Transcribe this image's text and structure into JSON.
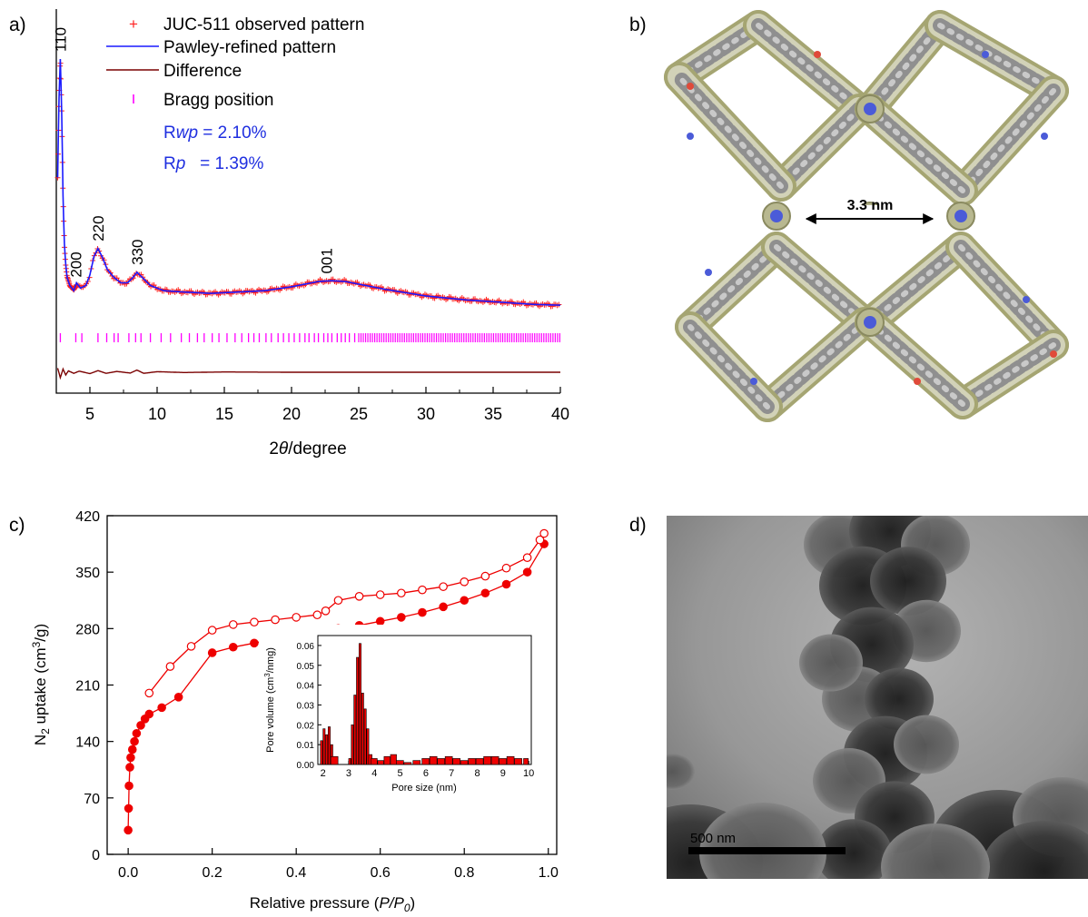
{
  "panel_labels": {
    "a": "a)",
    "b": "b)",
    "c": "c)",
    "d": "d)"
  },
  "colors": {
    "observed": "#ff2020",
    "refined": "#1a1aff",
    "difference": "#7a0000",
    "bragg": "#ff00ff",
    "rtext": "#1f2fe0",
    "isotherm": "#ee0000",
    "framework_wall": "#b3b37a",
    "tem_background": "#8a8a8a"
  },
  "chart_data": [
    {
      "type": "line",
      "panel": "a",
      "xlabel_pre": "2",
      "xlabel_theta": "θ",
      "xlabel_post": "/degree",
      "xlim": [
        2.5,
        40
      ],
      "xticks": [
        "5",
        "10",
        "15",
        "20",
        "25",
        "30",
        "35",
        "40"
      ],
      "legend": [
        {
          "symbol": "+",
          "label": "JUC-511 observed pattern"
        },
        {
          "symbol": "line-blue",
          "label": "Pawley-refined pattern"
        },
        {
          "symbol": "line-dark",
          "label": "Difference"
        },
        {
          "symbol": "|",
          "label": "Bragg position"
        }
      ],
      "rwp": {
        "prefix": "R",
        "sub": "wp",
        "value": " = 2.10%"
      },
      "rp": {
        "prefix": "R",
        "sub": "p",
        "value": "   = 1.39%"
      },
      "peak_labels": [
        {
          "x": 2.8,
          "label": "110"
        },
        {
          "x": 3.95,
          "label": "200"
        },
        {
          "x": 5.6,
          "label": "220"
        },
        {
          "x": 8.5,
          "label": "330"
        },
        {
          "x": 22.6,
          "label": "001"
        }
      ],
      "series": [
        {
          "name": "JUC-511 observed pattern",
          "x": [
            2.6,
            2.7,
            2.8,
            2.9,
            3.0,
            3.1,
            3.2,
            3.3,
            3.5,
            3.8,
            4.0,
            4.3,
            4.7,
            5.0,
            5.3,
            5.6,
            5.9,
            6.3,
            6.8,
            7.3,
            7.8,
            8.2,
            8.5,
            8.9,
            9.5,
            10.5,
            12,
            14,
            16,
            18,
            20,
            21,
            22,
            23,
            24,
            25,
            27,
            30,
            33,
            36,
            38,
            40
          ],
          "y": [
            0.55,
            0.85,
            1.0,
            0.8,
            0.48,
            0.3,
            0.22,
            0.17,
            0.14,
            0.12,
            0.15,
            0.13,
            0.14,
            0.18,
            0.25,
            0.28,
            0.25,
            0.2,
            0.17,
            0.15,
            0.15,
            0.17,
            0.19,
            0.17,
            0.14,
            0.12,
            0.115,
            0.11,
            0.115,
            0.12,
            0.135,
            0.145,
            0.155,
            0.158,
            0.155,
            0.145,
            0.125,
            0.1,
            0.085,
            0.075,
            0.068,
            0.065
          ]
        },
        {
          "name": "Pawley-refined pattern",
          "x": [
            2.6,
            2.7,
            2.8,
            2.9,
            3.0,
            3.1,
            3.2,
            3.3,
            3.5,
            3.8,
            4.0,
            4.3,
            4.7,
            5.0,
            5.3,
            5.6,
            5.9,
            6.3,
            6.8,
            7.3,
            7.8,
            8.2,
            8.5,
            8.9,
            9.5,
            10.5,
            12,
            14,
            16,
            18,
            20,
            21,
            22,
            23,
            24,
            25,
            27,
            30,
            33,
            36,
            38,
            40
          ],
          "y": [
            0.55,
            0.85,
            1.0,
            0.8,
            0.48,
            0.3,
            0.22,
            0.17,
            0.14,
            0.12,
            0.15,
            0.13,
            0.14,
            0.18,
            0.25,
            0.28,
            0.25,
            0.2,
            0.17,
            0.15,
            0.15,
            0.17,
            0.19,
            0.17,
            0.14,
            0.12,
            0.115,
            0.11,
            0.115,
            0.12,
            0.135,
            0.145,
            0.155,
            0.158,
            0.155,
            0.145,
            0.125,
            0.1,
            0.085,
            0.075,
            0.068,
            0.065
          ]
        },
        {
          "name": "Difference",
          "x": [
            2.6,
            2.8,
            3.0,
            3.2,
            3.4,
            3.8,
            4.2,
            5.0,
            5.6,
            6.2,
            7.0,
            8.0,
            8.5,
            9.0,
            10,
            12,
            15,
            20,
            25,
            30,
            35,
            40
          ],
          "y": [
            0.015,
            -0.02,
            0.012,
            -0.01,
            0.005,
            -0.004,
            0.004,
            -0.005,
            0.006,
            -0.004,
            0.003,
            -0.003,
            0.008,
            -0.004,
            0.002,
            -0.001,
            0.001,
            0.0,
            0.0,
            0.0,
            0.0,
            0.0
          ]
        }
      ],
      "bragg_x": [
        2.8,
        3.95,
        4.4,
        5.6,
        6.25,
        6.8,
        7.1,
        7.9,
        8.4,
        8.8,
        9.5,
        10.3,
        11.0,
        11.8,
        12.4,
        13.0,
        13.5,
        14.1,
        14.6,
        15.2,
        15.8,
        16.3,
        16.8,
        17.2,
        17.6,
        18.1,
        18.5,
        19.0,
        19.4,
        19.8,
        20.2,
        20.6,
        21.0,
        21.3,
        21.7,
        22.0,
        22.4,
        22.7,
        23.0,
        23.4,
        23.7,
        24.0,
        24.3,
        24.7
      ],
      "bragg_dense_range": [
        25,
        40
      ]
    },
    {
      "type": "scatter",
      "panel": "c",
      "xlabel": "Relative pressure (P/P0)",
      "xlabel_pre": "Relative pressure (",
      "xlabel_italic": "P/P",
      "xlabel_sub": "0",
      "xlabel_post": ")",
      "ylabel_pre": "N",
      "ylabel_sub": "2",
      "ylabel_mid": " uptake (cm",
      "ylabel_sup": "3",
      "ylabel_post": "/g)",
      "xlim": [
        -0.05,
        1.02
      ],
      "ylim": [
        0,
        420
      ],
      "xticks": [
        "0.0",
        "0.2",
        "0.4",
        "0.6",
        "0.8",
        "1.0"
      ],
      "yticks": [
        "0",
        "70",
        "140",
        "210",
        "280",
        "350",
        "420"
      ],
      "series": [
        {
          "name": "adsorption",
          "x": [
            0.0,
            0.001,
            0.002,
            0.004,
            0.006,
            0.01,
            0.015,
            0.02,
            0.03,
            0.04,
            0.05,
            0.08,
            0.12,
            0.2,
            0.25,
            0.3,
            0.35,
            0.4,
            0.45,
            0.5,
            0.55,
            0.6,
            0.65,
            0.7,
            0.75,
            0.8,
            0.85,
            0.9,
            0.95,
            0.99
          ],
          "y": [
            30,
            57,
            85,
            108,
            120,
            130,
            140,
            150,
            160,
            168,
            174,
            182,
            195,
            250,
            257,
            262,
            267,
            272,
            276,
            280,
            284,
            289,
            294,
            300,
            307,
            315,
            324,
            335,
            350,
            385
          ]
        },
        {
          "name": "desorption",
          "x": [
            0.99,
            0.98,
            0.95,
            0.9,
            0.85,
            0.8,
            0.75,
            0.7,
            0.65,
            0.6,
            0.55,
            0.5,
            0.47,
            0.45,
            0.4,
            0.35,
            0.3,
            0.25,
            0.2,
            0.15,
            0.1,
            0.05
          ],
          "y": [
            398,
            390,
            368,
            355,
            345,
            338,
            332,
            328,
            324,
            322,
            320,
            315,
            302,
            297,
            294,
            291,
            288,
            285,
            278,
            258,
            233,
            200
          ]
        }
      ]
    },
    {
      "type": "bar",
      "panel": "c-inset",
      "xlabel": "Pore size (nm)",
      "ylabel_pre": "Pore volume (cm",
      "ylabel_sup": "3",
      "ylabel_post": "/nmg)",
      "xlim": [
        1.8,
        10.1
      ],
      "ylim": [
        0,
        0.065
      ],
      "xticks": [
        "2",
        "3",
        "4",
        "5",
        "6",
        "7",
        "8",
        "9",
        "10"
      ],
      "yticks": [
        "0.00",
        "0.01",
        "0.02",
        "0.03",
        "0.04",
        "0.05",
        "0.06"
      ],
      "x": [
        1.95,
        2.05,
        2.15,
        2.25,
        2.35,
        2.45,
        3.05,
        3.15,
        3.25,
        3.35,
        3.45,
        3.55,
        3.65,
        3.75,
        3.85,
        4.0,
        4.25,
        4.5,
        4.75,
        5.0,
        5.3,
        5.65,
        6.0,
        6.3,
        6.6,
        6.9,
        7.2,
        7.5,
        7.8,
        8.1,
        8.4,
        8.7,
        9.0,
        9.3,
        9.6,
        9.9
      ],
      "values": [
        0.012,
        0.018,
        0.015,
        0.019,
        0.01,
        0.004,
        0.003,
        0.02,
        0.035,
        0.054,
        0.061,
        0.036,
        0.028,
        0.018,
        0.005,
        0.003,
        0.002,
        0.004,
        0.005,
        0.002,
        0.001,
        0.002,
        0.003,
        0.004,
        0.003,
        0.004,
        0.003,
        0.002,
        0.003,
        0.003,
        0.004,
        0.004,
        0.003,
        0.004,
        0.003,
        0.003
      ],
      "bar_width": 0.1
    }
  ],
  "framework": {
    "dimension_label": "3.3 nm"
  },
  "tem": {
    "scale_label": "500 nm"
  }
}
